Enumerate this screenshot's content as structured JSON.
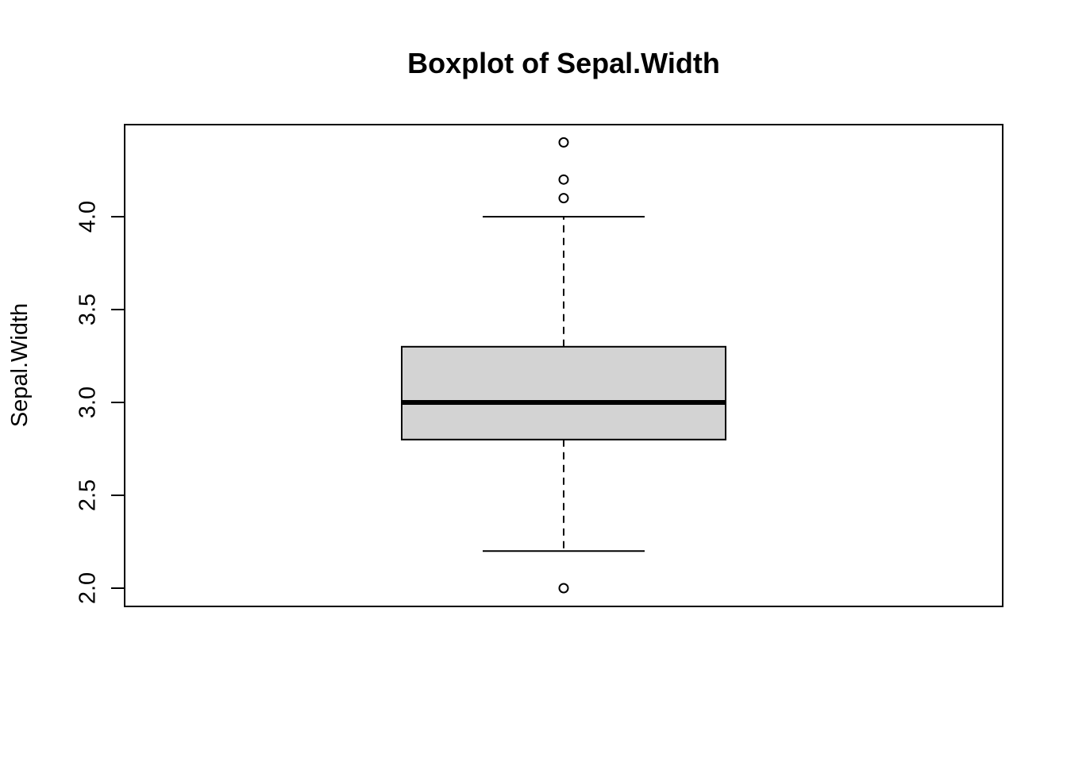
{
  "chart_data": {
    "type": "boxplot",
    "title": "Boxplot of Sepal.Width",
    "xlabel": "",
    "ylabel": "Sepal.Width",
    "ylim": [
      1.95,
      4.45
    ],
    "yticks": [
      2.0,
      2.5,
      3.0,
      3.5,
      4.0
    ],
    "ytick_labels": [
      "2.0",
      "2.5",
      "3.0",
      "3.5",
      "4.0"
    ],
    "grid": false,
    "box": {
      "lower_whisker": 2.2,
      "q1": 2.8,
      "median": 3.0,
      "q3": 3.3,
      "upper_whisker": 4.0,
      "outliers": [
        4.4,
        4.1,
        4.2,
        2.0
      ]
    },
    "colors": {
      "box_fill": "#d3d3d3",
      "stroke": "#000000"
    }
  }
}
